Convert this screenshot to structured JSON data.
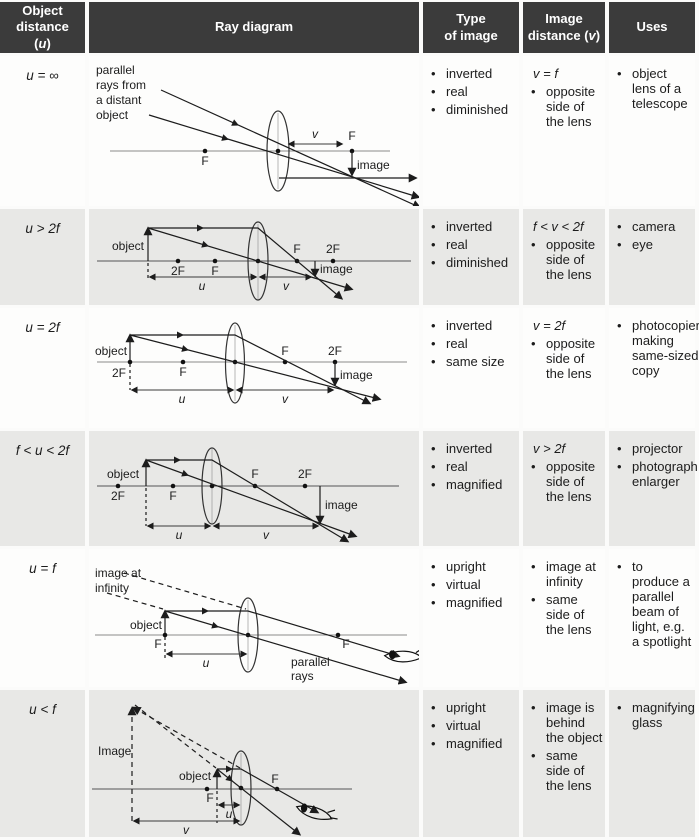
{
  "colors": {
    "header_bg": "#3b3b3b",
    "header_text": "#ffffff",
    "row_bg": "#fdfdfc",
    "row_alt_bg": "#e8e8e6",
    "ink": "#1c1c1c",
    "axis": "#8a8a8a"
  },
  "header": {
    "object_distance": {
      "line1": "Object",
      "line2": "distance",
      "paren_open": "(",
      "symbol": "u",
      "paren_close": ")"
    },
    "ray_diagram": "Ray diagram",
    "type_of_image": {
      "line1": "Type",
      "line2": "of image"
    },
    "image_distance": {
      "line1": "Image",
      "line2_pre": "distance (",
      "symbol": "v",
      "line2_post": ")"
    },
    "uses": "Uses"
  },
  "rows": [
    {
      "object_distance": "u = ∞",
      "type_of_image": [
        "inverted",
        "real",
        "diminished"
      ],
      "image_distance": {
        "lead": "v = f",
        "items": [
          "opposite side of the lens"
        ]
      },
      "uses": [
        "object lens of a telescope"
      ],
      "diagram": {
        "caption_lines": [
          "parallel",
          "rays from",
          "a distant",
          "object"
        ],
        "labels": {
          "F_left": "F",
          "F_right": "F",
          "v": "v",
          "image": "image"
        }
      }
    },
    {
      "object_distance": "u > 2f",
      "type_of_image": [
        "inverted",
        "real",
        "diminished"
      ],
      "image_distance": {
        "lead": "f < v < 2f",
        "items": [
          "opposite side of the lens"
        ]
      },
      "uses": [
        "camera",
        "eye"
      ],
      "diagram": {
        "labels": {
          "object": "object",
          "twoF_left": "2F",
          "F_left": "F",
          "F_right": "F",
          "twoF_right": "2F",
          "image": "image",
          "u": "u",
          "v": "v"
        }
      }
    },
    {
      "object_distance": "u = 2f",
      "type_of_image": [
        "inverted",
        "real",
        "same size"
      ],
      "image_distance": {
        "lead": "v = 2f",
        "items": [
          "opposite side of the lens"
        ]
      },
      "uses": [
        "photocopier making same-sized copy"
      ],
      "diagram": {
        "labels": {
          "object": "object",
          "twoF_left": "2F",
          "F_left": "F",
          "F_right": "F",
          "twoF_right": "2F",
          "image": "image",
          "u": "u",
          "v": "v"
        }
      }
    },
    {
      "object_distance": "f < u < 2f",
      "type_of_image": [
        "inverted",
        "real",
        "magnified"
      ],
      "image_distance": {
        "lead": "v > 2f",
        "items": [
          "opposite side of the lens"
        ]
      },
      "uses": [
        "projector",
        "photograph enlarger"
      ],
      "diagram": {
        "labels": {
          "object": "object",
          "twoF_left": "2F",
          "F_left": "F",
          "F_right": "F",
          "twoF_right": "2F",
          "image": "image",
          "u": "u",
          "v": "v"
        }
      }
    },
    {
      "object_distance": "u = f",
      "type_of_image": [
        "upright",
        "virtual",
        "magnified"
      ],
      "image_distance": {
        "lead": "",
        "items": [
          "image at infinity",
          "same side of the lens"
        ]
      },
      "uses": [
        "to produce a parallel beam of light, e.g. a spotlight"
      ],
      "diagram": {
        "caption_lines": [
          "image at",
          "infinity"
        ],
        "parallel_lines": [
          "parallel",
          "rays"
        ],
        "labels": {
          "object": "object",
          "F_left": "F",
          "F_right": "F",
          "u": "u"
        }
      }
    },
    {
      "object_distance": "u < f",
      "type_of_image": [
        "upright",
        "virtual",
        "magnified"
      ],
      "image_distance": {
        "lead": "",
        "items": [
          "image is behind the object",
          "same side of the lens"
        ]
      },
      "uses": [
        "magnifying glass"
      ],
      "diagram": {
        "labels": {
          "image": "Image",
          "object": "object",
          "F_left": "F",
          "F_right": "F",
          "u": "u",
          "v": "v"
        }
      }
    }
  ]
}
